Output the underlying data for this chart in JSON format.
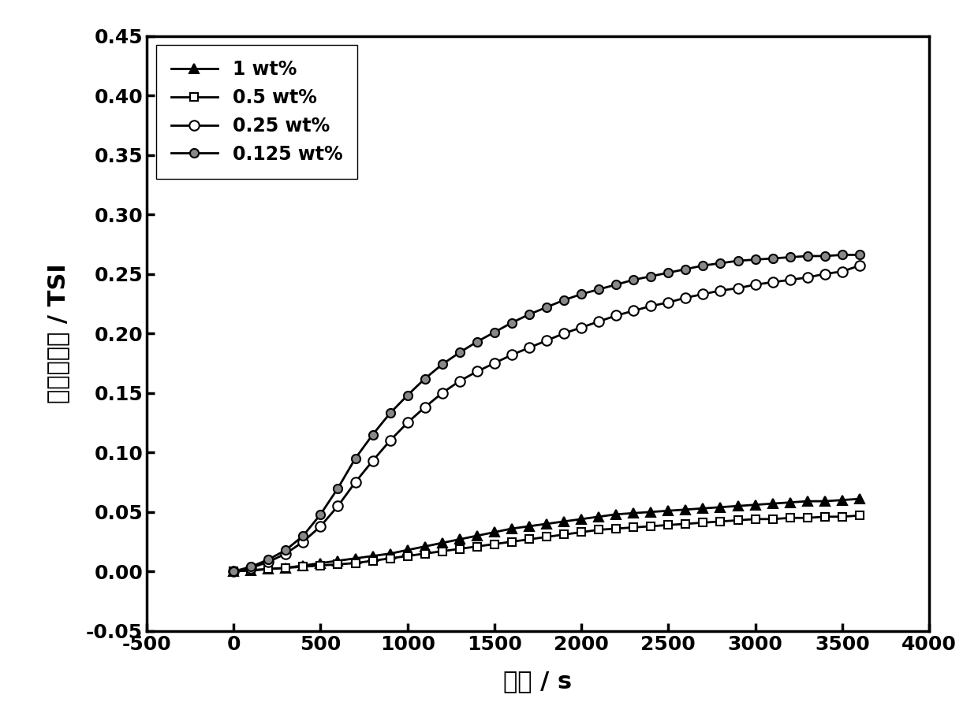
{
  "title": "",
  "xlabel": "时间 / s",
  "ylabel": "稳定性指数 / TSI",
  "xlim": [
    -500,
    4000
  ],
  "ylim": [
    -0.05,
    0.45
  ],
  "xticks": [
    -500,
    0,
    500,
    1000,
    1500,
    2000,
    2500,
    3000,
    3500,
    4000
  ],
  "yticks": [
    -0.05,
    0.0,
    0.05,
    0.1,
    0.15,
    0.2,
    0.25,
    0.3,
    0.35,
    0.4,
    0.45
  ],
  "background_color": "#ffffff",
  "series": [
    {
      "label": "1 wt%",
      "color": "#000000",
      "marker": "^",
      "marker_size": 8,
      "marker_face": "#000000",
      "linestyle": "-",
      "linewidth": 2.0,
      "x": [
        0,
        100,
        200,
        300,
        400,
        500,
        600,
        700,
        800,
        900,
        1000,
        1100,
        1200,
        1300,
        1400,
        1500,
        1600,
        1700,
        1800,
        1900,
        2000,
        2100,
        2200,
        2300,
        2400,
        2500,
        2600,
        2700,
        2800,
        2900,
        3000,
        3100,
        3200,
        3300,
        3400,
        3500,
        3600
      ],
      "y": [
        0.0,
        0.001,
        0.002,
        0.003,
        0.005,
        0.007,
        0.009,
        0.011,
        0.013,
        0.015,
        0.018,
        0.021,
        0.024,
        0.027,
        0.03,
        0.033,
        0.036,
        0.038,
        0.04,
        0.042,
        0.044,
        0.046,
        0.048,
        0.049,
        0.05,
        0.051,
        0.052,
        0.053,
        0.054,
        0.055,
        0.056,
        0.057,
        0.058,
        0.059,
        0.059,
        0.06,
        0.061
      ]
    },
    {
      "label": "0.5 wt%",
      "color": "#000000",
      "marker": "s",
      "marker_size": 7,
      "marker_face": "#ffffff",
      "linestyle": "-",
      "linewidth": 2.0,
      "x": [
        0,
        100,
        200,
        300,
        400,
        500,
        600,
        700,
        800,
        900,
        1000,
        1100,
        1200,
        1300,
        1400,
        1500,
        1600,
        1700,
        1800,
        1900,
        2000,
        2100,
        2200,
        2300,
        2400,
        2500,
        2600,
        2700,
        2800,
        2900,
        3000,
        3100,
        3200,
        3300,
        3400,
        3500,
        3600
      ],
      "y": [
        0.0,
        0.001,
        0.002,
        0.003,
        0.004,
        0.005,
        0.006,
        0.007,
        0.009,
        0.011,
        0.013,
        0.015,
        0.017,
        0.019,
        0.021,
        0.023,
        0.025,
        0.027,
        0.029,
        0.031,
        0.033,
        0.035,
        0.036,
        0.037,
        0.038,
        0.039,
        0.04,
        0.041,
        0.042,
        0.043,
        0.044,
        0.044,
        0.045,
        0.045,
        0.046,
        0.046,
        0.047
      ]
    },
    {
      "label": "0.25 wt%",
      "color": "#000000",
      "marker": "o",
      "marker_size": 9,
      "marker_face": "#ffffff",
      "linestyle": "-",
      "linewidth": 2.0,
      "x": [
        0,
        100,
        200,
        300,
        400,
        500,
        600,
        700,
        800,
        900,
        1000,
        1100,
        1200,
        1300,
        1400,
        1500,
        1600,
        1700,
        1800,
        1900,
        2000,
        2100,
        2200,
        2300,
        2400,
        2500,
        2600,
        2700,
        2800,
        2900,
        3000,
        3100,
        3200,
        3300,
        3400,
        3500,
        3600
      ],
      "y": [
        0.0,
        0.003,
        0.008,
        0.015,
        0.025,
        0.038,
        0.055,
        0.075,
        0.093,
        0.11,
        0.125,
        0.138,
        0.15,
        0.16,
        0.168,
        0.175,
        0.182,
        0.188,
        0.194,
        0.2,
        0.205,
        0.21,
        0.215,
        0.219,
        0.223,
        0.226,
        0.23,
        0.233,
        0.236,
        0.238,
        0.241,
        0.243,
        0.245,
        0.247,
        0.25,
        0.252,
        0.257
      ]
    },
    {
      "label": "0.125 wt%",
      "color": "#000000",
      "marker": "o",
      "marker_size": 8,
      "marker_face": "#888888",
      "linestyle": "-",
      "linewidth": 2.0,
      "x": [
        0,
        100,
        200,
        300,
        400,
        500,
        600,
        700,
        800,
        900,
        1000,
        1100,
        1200,
        1300,
        1400,
        1500,
        1600,
        1700,
        1800,
        1900,
        2000,
        2100,
        2200,
        2300,
        2400,
        2500,
        2600,
        2700,
        2800,
        2900,
        3000,
        3100,
        3200,
        3300,
        3400,
        3500,
        3600
      ],
      "y": [
        0.0,
        0.004,
        0.01,
        0.018,
        0.03,
        0.048,
        0.07,
        0.095,
        0.115,
        0.133,
        0.148,
        0.162,
        0.174,
        0.184,
        0.193,
        0.201,
        0.209,
        0.216,
        0.222,
        0.228,
        0.233,
        0.237,
        0.241,
        0.245,
        0.248,
        0.251,
        0.254,
        0.257,
        0.259,
        0.261,
        0.262,
        0.263,
        0.264,
        0.265,
        0.265,
        0.266,
        0.266
      ]
    }
  ],
  "legend_loc": "upper left",
  "legend_fontsize": 17,
  "tick_fontsize": 18,
  "axis_label_fontsize": 22,
  "font_weight": "bold"
}
